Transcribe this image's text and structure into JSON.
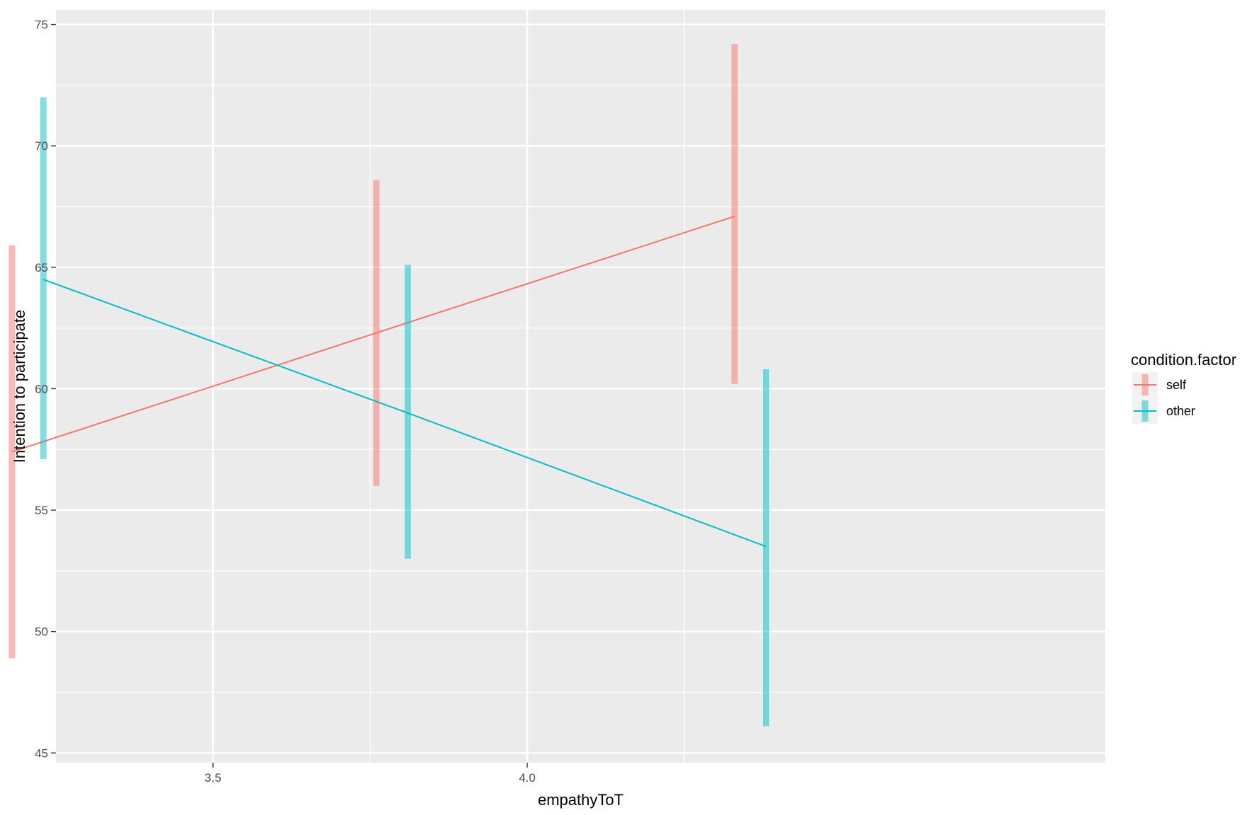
{
  "chart_data": {
    "type": "line",
    "xlabel": "empathyToT",
    "ylabel": "Intention to participate",
    "xlim": [
      3.25,
      4.92
    ],
    "ylim": [
      44.6,
      75.6
    ],
    "x_ticks": [
      3.5,
      4.0
    ],
    "x_tick_labels": [
      "3.5",
      "4.0"
    ],
    "y_ticks": [
      45,
      50,
      55,
      60,
      65,
      70,
      75
    ],
    "y_tick_labels": [
      "45",
      "50",
      "55",
      "60",
      "65",
      "70",
      "75"
    ],
    "grid": true,
    "legend": {
      "title": "condition.factor",
      "position": "right"
    },
    "series": [
      {
        "name": "self",
        "color": "#F8766D",
        "points": [
          {
            "x": 3.18,
            "y": 57.4,
            "ymin": 48.9,
            "ymax": 65.9
          },
          {
            "x": 3.76,
            "y": 62.3,
            "ymin": 56.0,
            "ymax": 68.6
          },
          {
            "x": 4.33,
            "y": 67.1,
            "ymin": 60.2,
            "ymax": 74.2
          }
        ]
      },
      {
        "name": "other",
        "color": "#00BFC4",
        "points": [
          {
            "x": 3.23,
            "y": 64.5,
            "ymin": 57.1,
            "ymax": 72.0
          },
          {
            "x": 3.81,
            "y": 59.0,
            "ymin": 53.0,
            "ymax": 65.1
          },
          {
            "x": 4.38,
            "y": 53.5,
            "ymin": 46.1,
            "ymax": 60.8
          }
        ]
      }
    ]
  }
}
